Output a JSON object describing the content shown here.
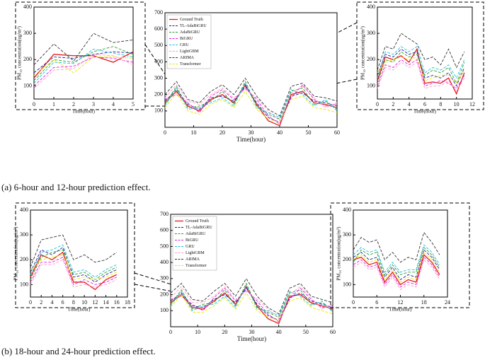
{
  "captions": [
    "(a)    6-hour and 12-hour prediction effect.",
    "(b)  18-hour and 24-hour prediction effect."
  ],
  "chart_data": [
    {
      "type": "line",
      "xlabel": "Time(hour)",
      "ylabel": "PM₁₀ concentration(ug/m³)",
      "x": [
        0,
        1,
        2,
        3,
        4,
        5
      ],
      "xlim": [
        0,
        5
      ],
      "xticks": [
        0,
        1,
        2,
        3,
        4,
        5
      ],
      "ylim": [
        50,
        400
      ],
      "yticks": [
        100,
        200,
        300,
        400
      ],
      "grid": false,
      "series": [
        {
          "color": "#e41a1c",
          "dash": "solid",
          "values": [
            130,
            220,
            215,
            215,
            190,
            230
          ]
        },
        {
          "color": "#1f1f9f",
          "dash": "dashed",
          "values": [
            150,
            210,
            205,
            220,
            230,
            225
          ]
        },
        {
          "color": "#2ca02c",
          "dash": "dashed",
          "values": [
            120,
            200,
            190,
            230,
            250,
            220
          ]
        },
        {
          "color": "#e020e0",
          "dash": "dashed",
          "values": [
            100,
            170,
            175,
            210,
            205,
            190
          ]
        },
        {
          "color": "#20c0e0",
          "dash": "dashed",
          "values": [
            110,
            190,
            185,
            240,
            225,
            210
          ]
        },
        {
          "color": "#ff9ec8",
          "dash": "dashed",
          "values": [
            90,
            160,
            165,
            220,
            215,
            180
          ]
        },
        {
          "color": "#333333",
          "dash": "dashed",
          "values": [
            180,
            260,
            195,
            300,
            265,
            275
          ]
        },
        {
          "color": "#e8e800",
          "dash": "dashed",
          "values": [
            140,
            200,
            150,
            210,
            210,
            205
          ]
        }
      ]
    },
    {
      "type": "line",
      "xlabel": "Time(hour)",
      "legend": "upper left",
      "x": [
        0,
        4,
        8,
        12,
        16,
        20,
        24,
        28,
        32,
        36,
        40,
        44,
        48,
        52,
        56,
        60
      ],
      "xlim": [
        0,
        60
      ],
      "xticks": [
        0,
        10,
        20,
        30,
        40,
        50,
        60
      ],
      "ylim": [
        0,
        700
      ],
      "yticks": [
        100,
        200,
        300,
        400,
        500,
        600,
        700
      ],
      "grid": false,
      "series": [
        {
          "name": "Ground Truth",
          "color": "#e41a1c",
          "dash": "solid",
          "values": [
            150,
            220,
            130,
            100,
            170,
            200,
            150,
            260,
            140,
            40,
            10,
            200,
            220,
            150,
            140,
            120
          ]
        },
        {
          "name": "TL-AdaBiGRU",
          "color": "#1f1f9f",
          "dash": "dashed",
          "values": [
            160,
            230,
            140,
            110,
            180,
            190,
            160,
            250,
            150,
            60,
            30,
            190,
            210,
            160,
            150,
            130
          ]
        },
        {
          "name": "AdaBiGRU",
          "color": "#2ca02c",
          "dash": "dashed",
          "values": [
            140,
            250,
            120,
            130,
            160,
            220,
            140,
            280,
            130,
            80,
            50,
            220,
            240,
            140,
            160,
            110
          ]
        },
        {
          "name": "BiGRU",
          "color": "#e020e0",
          "dash": "dashed",
          "values": [
            170,
            200,
            150,
            90,
            190,
            230,
            170,
            240,
            170,
            70,
            20,
            180,
            260,
            170,
            130,
            140
          ]
        },
        {
          "name": "GRU",
          "color": "#20c0e0",
          "dash": "dashed",
          "values": [
            130,
            240,
            110,
            120,
            150,
            180,
            130,
            270,
            120,
            90,
            60,
            230,
            200,
            130,
            170,
            100
          ]
        },
        {
          "name": "LightGBM",
          "color": "#ff9ec8",
          "dash": "dashed",
          "values": [
            180,
            260,
            160,
            140,
            200,
            240,
            180,
            230,
            180,
            100,
            40,
            210,
            250,
            180,
            120,
            150
          ]
        },
        {
          "name": "ARIMA",
          "color": "#333333",
          "dash": "dashed",
          "values": [
            200,
            280,
            170,
            150,
            220,
            260,
            200,
            300,
            190,
            110,
            70,
            250,
            270,
            190,
            180,
            160
          ]
        },
        {
          "name": "Transformer",
          "color": "#e8e800",
          "dash": "dashed",
          "values": [
            120,
            210,
            100,
            80,
            140,
            170,
            120,
            220,
            110,
            50,
            30,
            170,
            190,
            120,
            110,
            90
          ]
        }
      ]
    },
    {
      "type": "line",
      "xlabel": "Time(hour)",
      "ylabel": "PM₁₀ concentration(ug/m³)",
      "x": [
        0,
        1,
        2,
        3,
        4,
        5,
        6,
        7,
        8,
        9,
        10,
        11
      ],
      "xlim": [
        0,
        12
      ],
      "xticks": [
        0,
        2,
        4,
        6,
        8,
        10,
        12
      ],
      "ylim": [
        50,
        400
      ],
      "yticks": [
        100,
        200,
        300,
        400
      ],
      "grid": false,
      "series": [
        {
          "color": "#e41a1c",
          "dash": "solid",
          "values": [
            120,
            210,
            200,
            215,
            190,
            240,
            110,
            115,
            110,
            130,
            70,
            150
          ]
        },
        {
          "color": "#1f1f9f",
          "dash": "dashed",
          "values": [
            140,
            220,
            210,
            240,
            220,
            230,
            130,
            140,
            130,
            150,
            100,
            170
          ]
        },
        {
          "color": "#2ca02c",
          "dash": "dashed",
          "values": [
            110,
            200,
            190,
            230,
            210,
            220,
            140,
            160,
            150,
            170,
            110,
            190
          ]
        },
        {
          "color": "#e020e0",
          "dash": "dashed",
          "values": [
            100,
            180,
            170,
            200,
            180,
            200,
            100,
            110,
            120,
            110,
            90,
            140
          ]
        },
        {
          "color": "#20c0e0",
          "dash": "dashed",
          "values": [
            130,
            230,
            220,
            250,
            230,
            250,
            150,
            170,
            160,
            180,
            130,
            200
          ]
        },
        {
          "color": "#ff9ec8",
          "dash": "dashed",
          "values": [
            90,
            170,
            160,
            190,
            170,
            190,
            90,
            100,
            100,
            120,
            80,
            130
          ]
        },
        {
          "color": "#333333",
          "dash": "dashed",
          "values": [
            160,
            250,
            240,
            300,
            280,
            260,
            200,
            210,
            180,
            240,
            170,
            230
          ]
        },
        {
          "color": "#e8e800",
          "dash": "dashed",
          "values": [
            150,
            190,
            200,
            210,
            200,
            210,
            120,
            130,
            140,
            140,
            110,
            160
          ]
        }
      ]
    },
    {
      "type": "line",
      "xlabel": "Time(hour)",
      "ylabel": "PM₁₀ concentration(ug/m³)",
      "x": [
        0,
        2,
        4,
        6,
        8,
        10,
        12,
        14,
        16
      ],
      "xlim": [
        0,
        18
      ],
      "xticks": [
        0,
        2,
        4,
        6,
        8,
        10,
        12,
        14,
        16,
        18
      ],
      "ylim": [
        50,
        400
      ],
      "yticks": [
        100,
        200,
        300,
        400
      ],
      "grid": false,
      "series": [
        {
          "color": "#e41a1c",
          "dash": "solid",
          "values": [
            130,
            220,
            200,
            230,
            110,
            110,
            80,
            120,
            140
          ]
        },
        {
          "color": "#1f1f9f",
          "dash": "dashed",
          "values": [
            150,
            240,
            220,
            250,
            130,
            140,
            110,
            140,
            160
          ]
        },
        {
          "color": "#2ca02c",
          "dash": "dashed",
          "values": [
            120,
            210,
            230,
            240,
            140,
            150,
            120,
            150,
            170
          ]
        },
        {
          "color": "#e020e0",
          "dash": "dashed",
          "values": [
            110,
            190,
            190,
            210,
            100,
            120,
            100,
            110,
            130
          ]
        },
        {
          "color": "#20c0e0",
          "dash": "dashed",
          "values": [
            140,
            230,
            240,
            260,
            150,
            160,
            130,
            160,
            180
          ]
        },
        {
          "color": "#ff9ec8",
          "dash": "dashed",
          "values": [
            100,
            180,
            180,
            200,
            90,
            100,
            90,
            100,
            120
          ]
        },
        {
          "color": "#333333",
          "dash": "dashed",
          "values": [
            170,
            280,
            290,
            300,
            200,
            220,
            190,
            200,
            230
          ]
        },
        {
          "color": "#e8e800",
          "dash": "dashed",
          "values": [
            160,
            200,
            210,
            220,
            120,
            130,
            120,
            130,
            150
          ]
        }
      ]
    },
    {
      "type": "line",
      "xlabel": "Time(hour)",
      "legend": "upper left",
      "x": [
        0,
        4,
        8,
        12,
        16,
        20,
        24,
        28,
        32,
        36,
        40,
        44,
        48,
        52,
        56,
        60
      ],
      "xlim": [
        0,
        60
      ],
      "xticks": [
        0,
        10,
        20,
        30,
        40,
        50,
        60
      ],
      "ylim": [
        0,
        700
      ],
      "yticks": [
        100,
        200,
        300,
        400,
        500,
        600,
        700
      ],
      "grid": false,
      "series": [
        {
          "name": "Ground Truth",
          "color": "#e41a1c",
          "dash": "solid",
          "values": [
            150,
            200,
            120,
            110,
            160,
            210,
            140,
            250,
            130,
            50,
            20,
            190,
            200,
            150,
            130,
            110
          ]
        },
        {
          "name": "TL-AdaBiGRU",
          "color": "#1f1f9f",
          "dash": "dashed",
          "values": [
            160,
            210,
            130,
            120,
            170,
            200,
            150,
            240,
            140,
            70,
            40,
            180,
            210,
            160,
            140,
            120
          ]
        },
        {
          "name": "AdaBiGRU",
          "color": "#2ca02c",
          "dash": "dashed",
          "values": [
            140,
            230,
            110,
            140,
            150,
            230,
            130,
            270,
            120,
            90,
            60,
            210,
            230,
            140,
            150,
            100
          ]
        },
        {
          "name": "BiGRU",
          "color": "#e020e0",
          "dash": "dashed",
          "values": [
            170,
            190,
            140,
            100,
            180,
            240,
            160,
            230,
            160,
            80,
            30,
            170,
            240,
            170,
            120,
            130
          ]
        },
        {
          "name": "GRU",
          "color": "#20c0e0",
          "dash": "dashed",
          "values": [
            130,
            220,
            100,
            130,
            140,
            190,
            120,
            260,
            110,
            100,
            70,
            220,
            190,
            130,
            160,
            90
          ]
        },
        {
          "name": "LightGBM",
          "color": "#ff9ec8",
          "dash": "dashed",
          "values": [
            180,
            250,
            150,
            150,
            190,
            250,
            170,
            220,
            170,
            110,
            50,
            200,
            250,
            180,
            110,
            140
          ]
        },
        {
          "name": "ARIMA",
          "color": "#333333",
          "dash": "dashed",
          "values": [
            210,
            270,
            170,
            160,
            220,
            270,
            190,
            300,
            190,
            120,
            80,
            240,
            270,
            190,
            170,
            150
          ]
        },
        {
          "name": "Transformer",
          "color": "#e8e800",
          "dash": "dashed",
          "values": [
            120,
            200,
            90,
            90,
            130,
            180,
            110,
            210,
            100,
            60,
            40,
            160,
            180,
            120,
            100,
            80
          ]
        }
      ]
    },
    {
      "type": "line",
      "xlabel": "Time(hour)",
      "ylabel": "PM₁₀ concentration(ug/m³)",
      "x": [
        0,
        2,
        4,
        6,
        8,
        10,
        12,
        14,
        16,
        18,
        20,
        22
      ],
      "xlim": [
        0,
        24
      ],
      "xticks": [
        0,
        6,
        12,
        18,
        24
      ],
      "ylim": [
        50,
        400
      ],
      "yticks": [
        100,
        200,
        300,
        400
      ],
      "grid": false,
      "series": [
        {
          "color": "#e41a1c",
          "dash": "solid",
          "values": [
            200,
            210,
            180,
            190,
            110,
            150,
            100,
            120,
            110,
            220,
            190,
            140
          ]
        },
        {
          "color": "#1f1f9f",
          "dash": "dashed",
          "values": [
            210,
            230,
            200,
            210,
            130,
            170,
            120,
            140,
            130,
            240,
            210,
            160
          ]
        },
        {
          "color": "#2ca02c",
          "dash": "dashed",
          "values": [
            190,
            240,
            220,
            230,
            140,
            180,
            140,
            150,
            150,
            250,
            220,
            170
          ]
        },
        {
          "color": "#e020e0",
          "dash": "dashed",
          "values": [
            180,
            200,
            170,
            180,
            100,
            140,
            90,
            110,
            100,
            210,
            180,
            130
          ]
        },
        {
          "color": "#20c0e0",
          "dash": "dashed",
          "values": [
            220,
            250,
            230,
            240,
            150,
            190,
            150,
            160,
            160,
            260,
            230,
            180
          ]
        },
        {
          "color": "#ff9ec8",
          "dash": "dashed",
          "values": [
            170,
            190,
            160,
            170,
            90,
            130,
            80,
            100,
            90,
            200,
            170,
            120
          ]
        },
        {
          "color": "#333333",
          "dash": "dashed",
          "values": [
            240,
            290,
            270,
            280,
            200,
            230,
            190,
            210,
            200,
            310,
            270,
            220
          ]
        },
        {
          "color": "#e8e800",
          "dash": "dashed",
          "values": [
            200,
            220,
            190,
            200,
            120,
            160,
            110,
            130,
            120,
            230,
            200,
            150
          ]
        }
      ]
    }
  ]
}
